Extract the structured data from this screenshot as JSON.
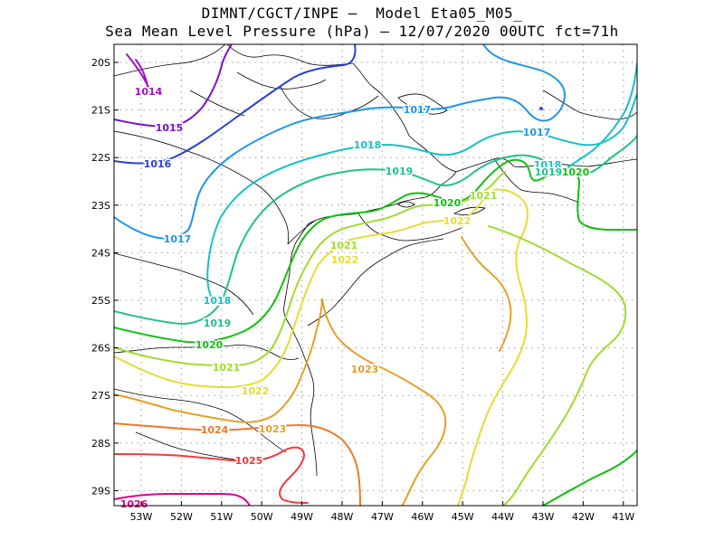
{
  "header": {
    "line1": "DIMNT/CGCT/INPE –  Model Eta05_M05_",
    "line2": "Sea Mean Level Pressure (hPa) – 12/07/2020 00UTC fct=71h"
  },
  "axes": {
    "lon_ticks": [
      "53W",
      "52W",
      "51W",
      "50W",
      "49W",
      "48W",
      "47W",
      "46W",
      "45W",
      "44W",
      "43W",
      "42W",
      "41W"
    ],
    "lat_ticks": [
      "20S",
      "21S",
      "22S",
      "23S",
      "24S",
      "25S",
      "26S",
      "27S",
      "28S",
      "29S"
    ]
  },
  "colors": {
    "c1014": "#a010c8",
    "c1015": "#7a10c8",
    "c1016": "#2840d8",
    "c1017": "#1e96e8",
    "c1018": "#18c0c8",
    "c1019": "#20c090",
    "c1020": "#10c010",
    "c1021": "#a0dc30",
    "c1022": "#e6dc32",
    "c1023": "#e6a028",
    "c1024": "#f07828",
    "c1025": "#f03c3c",
    "c1026": "#e0008c",
    "coast": "#000000",
    "grid": "#9a9a9a"
  },
  "contour_labels": [
    {
      "text": "1014",
      "key": "c1014"
    },
    {
      "text": "1015",
      "key": "c1015"
    },
    {
      "text": "1016",
      "key": "c1016"
    },
    {
      "text": "1017",
      "key": "c1017"
    },
    {
      "text": "1017",
      "key": "c1017"
    },
    {
      "text": "1017",
      "key": "c1017"
    },
    {
      "text": "1018",
      "key": "c1018"
    },
    {
      "text": "1018",
      "key": "c1018"
    },
    {
      "text": "1018",
      "key": "c1018"
    },
    {
      "text": "1019",
      "key": "c1019"
    },
    {
      "text": "1019",
      "key": "c1019"
    },
    {
      "text": "1019",
      "key": "c1019"
    },
    {
      "text": "1020",
      "key": "c1020"
    },
    {
      "text": "1020",
      "key": "c1020"
    },
    {
      "text": "1020",
      "key": "c1020"
    },
    {
      "text": "1021",
      "key": "c1021"
    },
    {
      "text": "1021",
      "key": "c1021"
    },
    {
      "text": "1021",
      "key": "c1021"
    },
    {
      "text": "1022",
      "key": "c1022"
    },
    {
      "text": "1022",
      "key": "c1022"
    },
    {
      "text": "1022",
      "key": "c1022"
    },
    {
      "text": "1023",
      "key": "c1023"
    },
    {
      "text": "1023",
      "key": "c1023"
    },
    {
      "text": "1024",
      "key": "c1024"
    },
    {
      "text": "1025",
      "key": "c1025"
    },
    {
      "text": "1026",
      "key": "c1026"
    }
  ]
}
